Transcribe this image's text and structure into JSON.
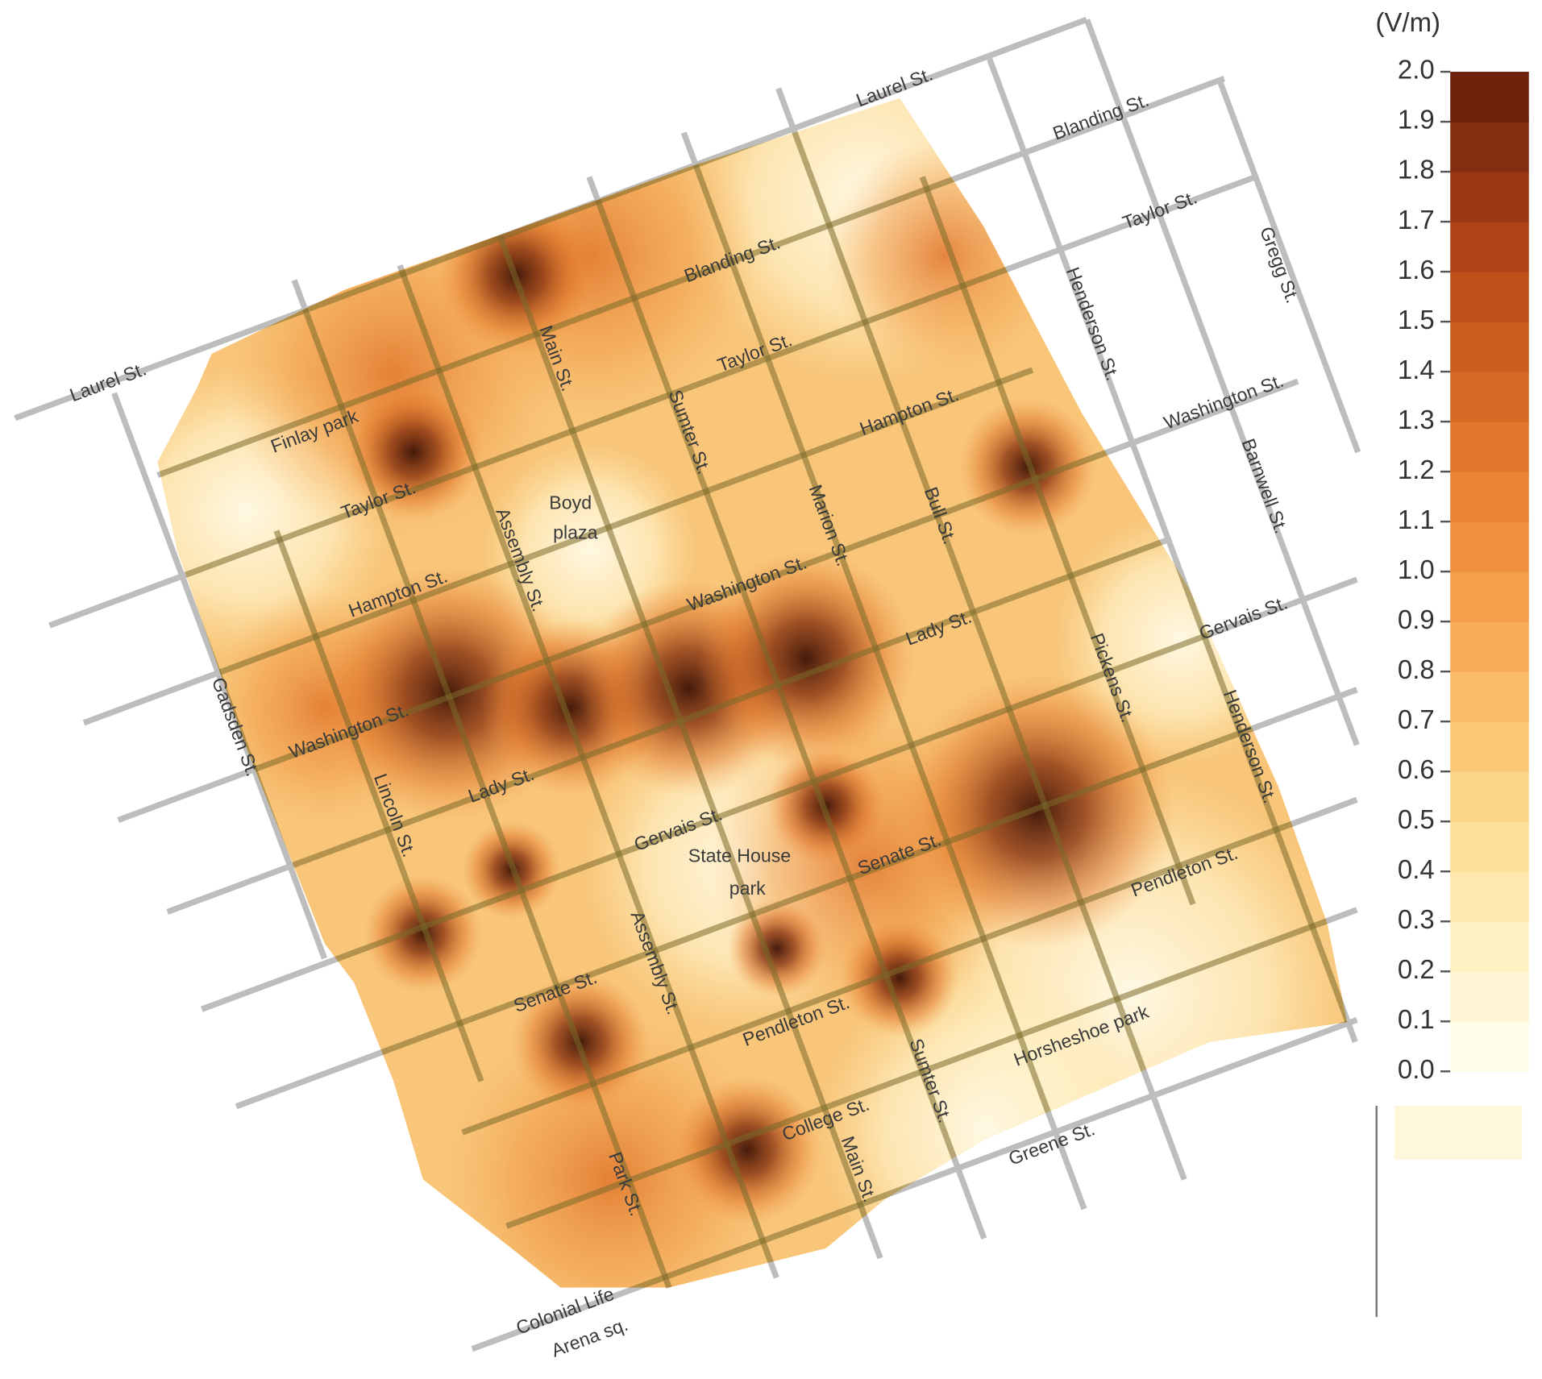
{
  "map": {
    "labels": [
      "Laurel St.",
      "Laurel St.",
      "Blanding St.",
      "Blanding St.",
      "Taylor St.",
      "Taylor St.",
      "Taylor St.",
      "Gregg St.",
      "Henderson St.",
      "Washington St.",
      "Hampton St.",
      "Hampton St.",
      "Barnwell St.",
      "Finlay park",
      "Main St.",
      "Sumter St.",
      "Boyd",
      "plaza",
      "Assembly St.",
      "Marion St.",
      "Bull St.",
      "Washington St.",
      "Lady St.",
      "Gervais St.",
      "Pickens St.",
      "Henderson St.",
      "Washington St.",
      "Gadsden St.",
      "Lady St.",
      "Lincoln St.",
      "Gervais St.",
      "State House",
      "park",
      "Senate St.",
      "Pendleton St.",
      "Assembly St.",
      "Senate St.",
      "Pendleton St.",
      "Sumter St.",
      "Horsheshoe park",
      "College St.",
      "Main St.",
      "Greene St.",
      "Park St.",
      "Colonial Life",
      "Arena sq."
    ]
  },
  "colorbar": {
    "unit": "(V/m)",
    "lim": [
      0,
      2
    ],
    "ticks": [
      {
        "value": 0,
        "label": "0.0"
      },
      0.1,
      0.2,
      0.3,
      0.4,
      0.5,
      0.6,
      0.7,
      0.8,
      0.9,
      {
        "value": 1,
        "label": "1.0"
      },
      1.1,
      1.2,
      1.3,
      1.4,
      1.5,
      1.6,
      1.7,
      1.8,
      1.9,
      {
        "value": 2,
        "label": "2.0"
      }
    ],
    "colors": [
      "#fffce8",
      "#fff6d5",
      "#fff0c2",
      "#fee8ad",
      "#fde09a",
      "#fcd589",
      "#fbc878",
      "#f9bb67",
      "#f7ad58",
      "#f59f4a",
      "#f0913e",
      "#ea8434",
      "#e3772c",
      "#d96a25",
      "#cd5d1f",
      "#be4f1a",
      "#ad4316",
      "#9a3813",
      "#852d10",
      "#6f230d"
    ]
  }
}
